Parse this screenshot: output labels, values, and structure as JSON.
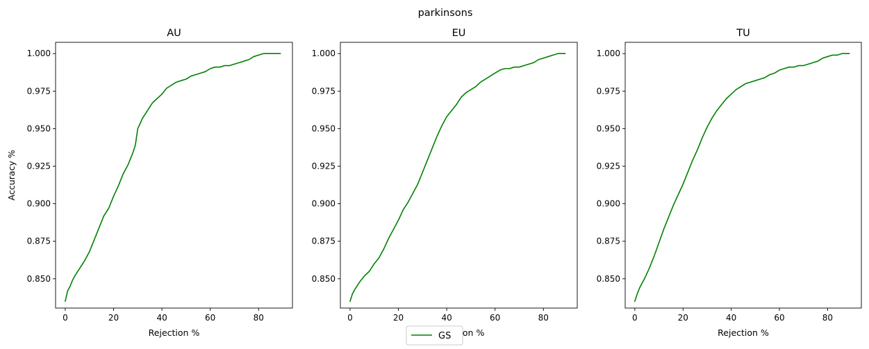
{
  "figure": {
    "suptitle": "parkinsons",
    "legend": {
      "label": "GS",
      "placement": "bottom-center"
    }
  },
  "colors": {
    "series": "#008000",
    "axes": "#000000",
    "background": "#ffffff"
  },
  "chart_data": [
    {
      "type": "line",
      "title": "AU",
      "xlabel": "Rejection %",
      "ylabel": "Accuracy %",
      "xlim": [
        -4,
        94
      ],
      "ylim": [
        0.8305,
        1.0075
      ],
      "xticks": [
        0,
        20,
        40,
        60,
        80
      ],
      "yticks": [
        0.85,
        0.875,
        0.9,
        0.925,
        0.95,
        0.975,
        1.0
      ],
      "ytick_labels": [
        "0.850",
        "0.875",
        "0.900",
        "0.925",
        "0.950",
        "0.975",
        "1.000"
      ],
      "grid": false,
      "series": [
        {
          "name": "GS",
          "x": [
            0,
            1,
            2,
            3,
            4,
            6,
            8,
            10,
            12,
            14,
            16,
            18,
            20,
            22,
            24,
            26,
            28,
            29,
            30,
            32,
            34,
            36,
            38,
            40,
            42,
            44,
            46,
            48,
            50,
            52,
            54,
            56,
            58,
            60,
            62,
            64,
            66,
            68,
            70,
            72,
            74,
            76,
            78,
            80,
            82,
            84,
            86,
            88,
            89
          ],
          "y": [
            0.835,
            0.842,
            0.845,
            0.849,
            0.852,
            0.857,
            0.862,
            0.868,
            0.876,
            0.884,
            0.892,
            0.897,
            0.905,
            0.912,
            0.92,
            0.926,
            0.934,
            0.939,
            0.95,
            0.957,
            0.962,
            0.967,
            0.97,
            0.973,
            0.977,
            0.979,
            0.981,
            0.982,
            0.983,
            0.985,
            0.986,
            0.987,
            0.988,
            0.99,
            0.991,
            0.991,
            0.992,
            0.992,
            0.993,
            0.994,
            0.995,
            0.996,
            0.998,
            0.999,
            1.0,
            1.0,
            1.0,
            1.0,
            1.0
          ]
        }
      ]
    },
    {
      "type": "line",
      "title": "EU",
      "xlabel": "Rejection %",
      "ylabel": "",
      "xlim": [
        -4,
        94
      ],
      "ylim": [
        0.8305,
        1.0075
      ],
      "xticks": [
        0,
        20,
        40,
        60,
        80
      ],
      "yticks": [
        0.85,
        0.875,
        0.9,
        0.925,
        0.95,
        0.975,
        1.0
      ],
      "ytick_labels": [
        "0.850",
        "0.875",
        "0.900",
        "0.925",
        "0.950",
        "0.975",
        "1.000"
      ],
      "grid": false,
      "series": [
        {
          "name": "GS",
          "x": [
            0,
            1,
            2,
            4,
            6,
            8,
            10,
            12,
            14,
            16,
            18,
            20,
            22,
            24,
            26,
            28,
            30,
            32,
            34,
            36,
            38,
            40,
            42,
            44,
            46,
            48,
            50,
            52,
            54,
            56,
            58,
            60,
            62,
            64,
            66,
            68,
            70,
            72,
            74,
            76,
            78,
            80,
            82,
            84,
            86,
            88,
            89
          ],
          "y": [
            0.835,
            0.84,
            0.843,
            0.848,
            0.852,
            0.855,
            0.86,
            0.864,
            0.87,
            0.877,
            0.883,
            0.889,
            0.896,
            0.901,
            0.907,
            0.913,
            0.921,
            0.929,
            0.937,
            0.945,
            0.952,
            0.958,
            0.962,
            0.966,
            0.971,
            0.974,
            0.976,
            0.978,
            0.981,
            0.983,
            0.985,
            0.987,
            0.989,
            0.99,
            0.99,
            0.991,
            0.991,
            0.992,
            0.993,
            0.994,
            0.996,
            0.997,
            0.998,
            0.999,
            1.0,
            1.0,
            1.0
          ]
        }
      ]
    },
    {
      "type": "line",
      "title": "TU",
      "xlabel": "Rejection %",
      "ylabel": "",
      "xlim": [
        -4,
        94
      ],
      "ylim": [
        0.8305,
        1.0075
      ],
      "xticks": [
        0,
        20,
        40,
        60,
        80
      ],
      "yticks": [
        0.85,
        0.875,
        0.9,
        0.925,
        0.95,
        0.975,
        1.0
      ],
      "ytick_labels": [
        "0.850",
        "0.875",
        "0.900",
        "0.925",
        "0.950",
        "0.975",
        "1.000"
      ],
      "grid": false,
      "series": [
        {
          "name": "GS",
          "x": [
            0,
            1,
            2,
            4,
            6,
            8,
            10,
            12,
            14,
            16,
            18,
            20,
            22,
            24,
            26,
            28,
            30,
            32,
            34,
            36,
            38,
            40,
            42,
            44,
            46,
            48,
            50,
            52,
            54,
            56,
            58,
            60,
            62,
            64,
            66,
            68,
            70,
            72,
            74,
            76,
            78,
            80,
            82,
            84,
            86,
            88,
            89
          ],
          "y": [
            0.835,
            0.84,
            0.844,
            0.85,
            0.857,
            0.865,
            0.874,
            0.883,
            0.891,
            0.899,
            0.906,
            0.913,
            0.921,
            0.929,
            0.936,
            0.944,
            0.951,
            0.957,
            0.962,
            0.966,
            0.97,
            0.973,
            0.976,
            0.978,
            0.98,
            0.981,
            0.982,
            0.983,
            0.984,
            0.986,
            0.987,
            0.989,
            0.99,
            0.991,
            0.991,
            0.992,
            0.992,
            0.993,
            0.994,
            0.995,
            0.997,
            0.998,
            0.999,
            0.999,
            1.0,
            1.0,
            1.0
          ]
        }
      ]
    }
  ]
}
